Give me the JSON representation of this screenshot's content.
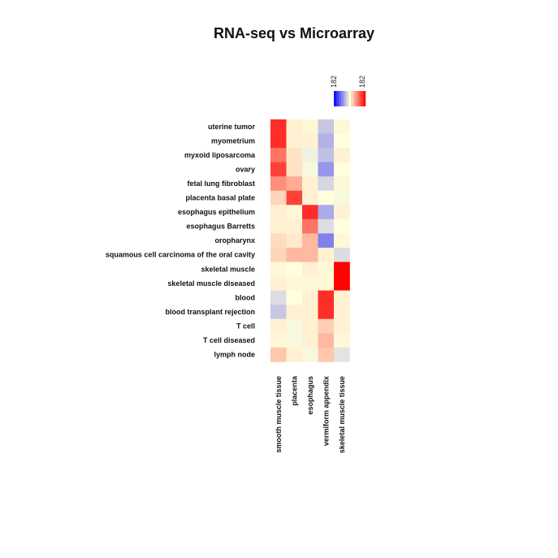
{
  "chart_data": {
    "type": "heatmap",
    "title": "RNA-seq vs Microarray",
    "rows": [
      "uterine tumor",
      "myometrium",
      "myxoid liposarcoma",
      "ovary",
      "fetal lung fibroblast",
      "placenta basal plate",
      "esophagus epithelium",
      "esophagus Barretts",
      "oropharynx",
      "squamous cell carcinoma of the oral cavity",
      "skeletal muscle",
      "skeletal muscle diseased",
      "blood",
      "blood transplant rejection",
      "T cell",
      "T cell diseased",
      "lymph node"
    ],
    "columns": [
      "smooth muscle tissue",
      "placenta",
      "esophagus",
      "vermiform appendix",
      "skeletal muscle tissue"
    ],
    "values": [
      [
        150,
        10,
        5,
        -40,
        5
      ],
      [
        150,
        10,
        10,
        -55,
        0
      ],
      [
        100,
        20,
        -10,
        -45,
        10
      ],
      [
        135,
        20,
        -5,
        -75,
        0
      ],
      [
        80,
        60,
        10,
        -30,
        5
      ],
      [
        30,
        135,
        10,
        0,
        -5
      ],
      [
        10,
        5,
        150,
        -60,
        10
      ],
      [
        10,
        10,
        100,
        -25,
        0
      ],
      [
        25,
        15,
        50,
        -90,
        5
      ],
      [
        30,
        50,
        50,
        10,
        -25
      ],
      [
        5,
        0,
        10,
        5,
        180
      ],
      [
        10,
        5,
        5,
        5,
        180
      ],
      [
        -25,
        0,
        10,
        150,
        10
      ],
      [
        -40,
        10,
        10,
        150,
        10
      ],
      [
        10,
        -5,
        10,
        35,
        10
      ],
      [
        5,
        -5,
        10,
        50,
        5
      ],
      [
        40,
        10,
        -5,
        40,
        -20
      ]
    ],
    "color_scale": {
      "min": -182,
      "max": 182,
      "low_color": "#0000ff",
      "mid_color": "#ffffdd",
      "high_color": "#ff0000",
      "tick_labels": [
        "182",
        "182"
      ]
    },
    "legend_position": "top-right"
  }
}
